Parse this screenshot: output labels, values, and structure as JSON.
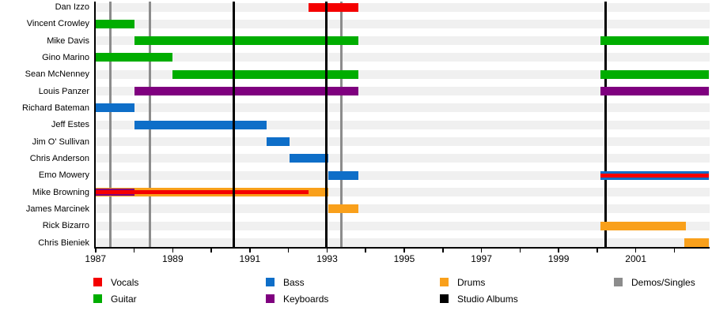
{
  "chart_data": {
    "type": "timeline",
    "title": "",
    "x_axis": {
      "min": 1987,
      "max": 2002.92,
      "labeled_ticks": [
        1987,
        1989,
        1991,
        1993,
        1995,
        1997,
        1999,
        2001
      ],
      "minor_tick_interval": 1,
      "grid": false
    },
    "colors": {
      "vocals": "#F40000",
      "guitar": "#00AD00",
      "bass": "#0E6EC8",
      "keyboards": "#7F007F",
      "drums": "#F9A01B",
      "studio_albums": "#000000",
      "demos_singles": "#8C8C8C",
      "row_band": "#F0F0F0",
      "axis": "#000000"
    },
    "members": [
      {
        "name": "Dan Izzo",
        "bars": [
          {
            "instrument": "vocals",
            "from": 1992.51,
            "to": 1993.81,
            "height": "full"
          }
        ]
      },
      {
        "name": "Vincent Crowley",
        "bars": [
          {
            "instrument": "guitar",
            "from": 1987.0,
            "to": 1988.0,
            "height": "full"
          }
        ]
      },
      {
        "name": "Mike Davis",
        "bars": [
          {
            "instrument": "guitar",
            "from": 1988.0,
            "to": 1993.81,
            "height": "full"
          },
          {
            "instrument": "guitar",
            "from": 2000.08,
            "to": 2002.92,
            "height": "full"
          }
        ]
      },
      {
        "name": "Gino Marino",
        "bars": [
          {
            "instrument": "guitar",
            "from": 1987.0,
            "to": 1989.0,
            "height": "full"
          }
        ]
      },
      {
        "name": "Sean McNenney",
        "bars": [
          {
            "instrument": "guitar",
            "from": 1989.0,
            "to": 1993.81,
            "height": "full"
          },
          {
            "instrument": "guitar",
            "from": 2000.08,
            "to": 2002.92,
            "height": "full"
          }
        ]
      },
      {
        "name": "Louis Panzer",
        "bars": [
          {
            "instrument": "keyboards",
            "from": 1988.0,
            "to": 1993.81,
            "height": "full"
          },
          {
            "instrument": "keyboards",
            "from": 2000.08,
            "to": 2002.92,
            "height": "full"
          }
        ]
      },
      {
        "name": "Richard Bateman",
        "bars": [
          {
            "instrument": "bass",
            "from": 1987.0,
            "to": 1988.0,
            "height": "full"
          }
        ]
      },
      {
        "name": "Jeff Estes",
        "bars": [
          {
            "instrument": "bass",
            "from": 1988.0,
            "to": 1991.43,
            "height": "full"
          }
        ]
      },
      {
        "name": "Jim O' Sullivan",
        "bars": [
          {
            "instrument": "bass",
            "from": 1991.43,
            "to": 1992.03,
            "height": "full"
          }
        ]
      },
      {
        "name": "Chris Anderson",
        "bars": [
          {
            "instrument": "bass",
            "from": 1992.03,
            "to": 1993.03,
            "height": "full"
          }
        ]
      },
      {
        "name": "Emo Mowery",
        "bars": [
          {
            "instrument": "bass",
            "from": 1993.03,
            "to": 1993.81,
            "height": "full"
          },
          {
            "instrument": "bass",
            "from": 2000.08,
            "to": 2002.92,
            "height": "full"
          },
          {
            "instrument": "vocals",
            "from": 2000.08,
            "to": 2002.92,
            "height": "thin"
          }
        ]
      },
      {
        "name": "Mike Browning",
        "bars": [
          {
            "instrument": "drums",
            "from": 1987.0,
            "to": 1993.03,
            "height": "full"
          },
          {
            "instrument": "keyboards",
            "from": 1987.0,
            "to": 1988.0,
            "height": "mid"
          },
          {
            "instrument": "vocals",
            "from": 1987.0,
            "to": 1992.52,
            "height": "thin"
          }
        ]
      },
      {
        "name": "James Marcinek",
        "bars": [
          {
            "instrument": "drums",
            "from": 1993.03,
            "to": 1993.81,
            "height": "full"
          }
        ]
      },
      {
        "name": "Rick Bizarro",
        "bars": [
          {
            "instrument": "drums",
            "from": 2000.08,
            "to": 2002.3,
            "height": "full"
          }
        ]
      },
      {
        "name": "Chris Bieniek",
        "bars": [
          {
            "instrument": "drums",
            "from": 2002.26,
            "to": 2002.92,
            "height": "full"
          }
        ]
      }
    ],
    "events": {
      "demos_singles": [
        {
          "year": 1987.38,
          "layer": "back"
        },
        {
          "year": 1988.41,
          "layer": "back"
        },
        {
          "year": 1993.38,
          "layer": "back"
        }
      ],
      "studio_albums": [
        {
          "year": 1990.59,
          "layer": "front"
        },
        {
          "year": 1992.98,
          "layer": "front"
        },
        {
          "year": 2000.22,
          "layer": "back"
        }
      ]
    },
    "legend": {
      "columns": [
        [
          {
            "label": "Vocals",
            "color_key": "vocals"
          },
          {
            "label": "Guitar",
            "color_key": "guitar"
          }
        ],
        [
          {
            "label": "Bass",
            "color_key": "bass"
          },
          {
            "label": "Keyboards",
            "color_key": "keyboards"
          }
        ],
        [
          {
            "label": "Drums",
            "color_key": "drums"
          },
          {
            "label": "Studio Albums",
            "color_key": "studio_albums"
          }
        ],
        [
          {
            "label": "Demos/Singles",
            "color_key": "demos_singles"
          }
        ]
      ]
    }
  }
}
